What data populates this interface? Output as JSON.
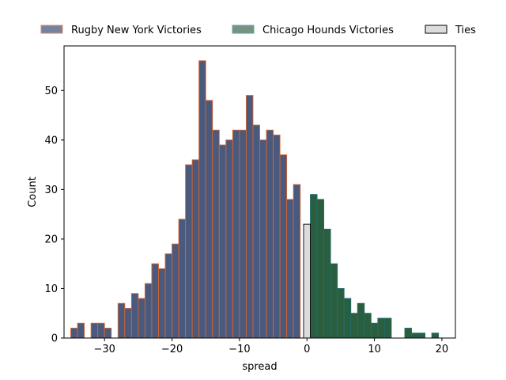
{
  "chart_data": {
    "type": "bar",
    "xlabel": "spread",
    "ylabel": "Count",
    "xlim": [
      -36,
      22
    ],
    "ylim": [
      0,
      59
    ],
    "x_ticks": [
      -30,
      -20,
      -10,
      0,
      10,
      20
    ],
    "y_ticks": [
      0,
      10,
      20,
      30,
      40,
      50
    ],
    "x_tick_labels": [
      "−30",
      "−20",
      "−10",
      "0",
      "10",
      "20"
    ],
    "y_tick_labels": [
      "0",
      "10",
      "20",
      "30",
      "40",
      "50"
    ],
    "bin_width": 1,
    "grid": false,
    "legend_placement": "top-center, above plot, 3 columns",
    "series": [
      {
        "name": "Rugby New York Victories",
        "fill": "#4a5a7e",
        "edge": "#d9622b",
        "bins": [
          [
            -35,
            2
          ],
          [
            -34,
            3
          ],
          [
            -32,
            3
          ],
          [
            -31,
            3
          ],
          [
            -30,
            2
          ],
          [
            -28,
            7
          ],
          [
            -27,
            6
          ],
          [
            -26,
            9
          ],
          [
            -25,
            8
          ],
          [
            -24,
            11
          ],
          [
            -23,
            15
          ],
          [
            -22,
            14
          ],
          [
            -21,
            17
          ],
          [
            -20,
            19
          ],
          [
            -19,
            24
          ],
          [
            -18,
            35
          ],
          [
            -17,
            36
          ],
          [
            -16,
            56
          ],
          [
            -15,
            48
          ],
          [
            -14,
            42
          ],
          [
            -13,
            39
          ],
          [
            -12,
            40
          ],
          [
            -11,
            42
          ],
          [
            -10,
            42
          ],
          [
            -9,
            49
          ],
          [
            -8,
            43
          ],
          [
            -7,
            40
          ],
          [
            -6,
            42
          ],
          [
            -5,
            41
          ],
          [
            -4,
            37
          ],
          [
            -3,
            28
          ],
          [
            -2,
            31
          ]
        ]
      },
      {
        "name": "Chicago Hounds Victories",
        "fill": "#2b5e3e",
        "edge": "#1f6e6e",
        "bins": [
          [
            0.5,
            29
          ],
          [
            1.5,
            28
          ],
          [
            2.5,
            22
          ],
          [
            3.5,
            15
          ],
          [
            4.5,
            10
          ],
          [
            5.5,
            8
          ],
          [
            6.5,
            5
          ],
          [
            7.5,
            7
          ],
          [
            8.5,
            5
          ],
          [
            9.5,
            3
          ],
          [
            10.5,
            4
          ],
          [
            11.5,
            4
          ],
          [
            14.5,
            2
          ],
          [
            15.5,
            1
          ],
          [
            16.5,
            1
          ],
          [
            18.5,
            1
          ]
        ]
      },
      {
        "name": "Ties",
        "fill": "#dcdcdc",
        "edge": "#000000",
        "bins": [
          [
            -0.5,
            23
          ]
        ]
      }
    ]
  }
}
